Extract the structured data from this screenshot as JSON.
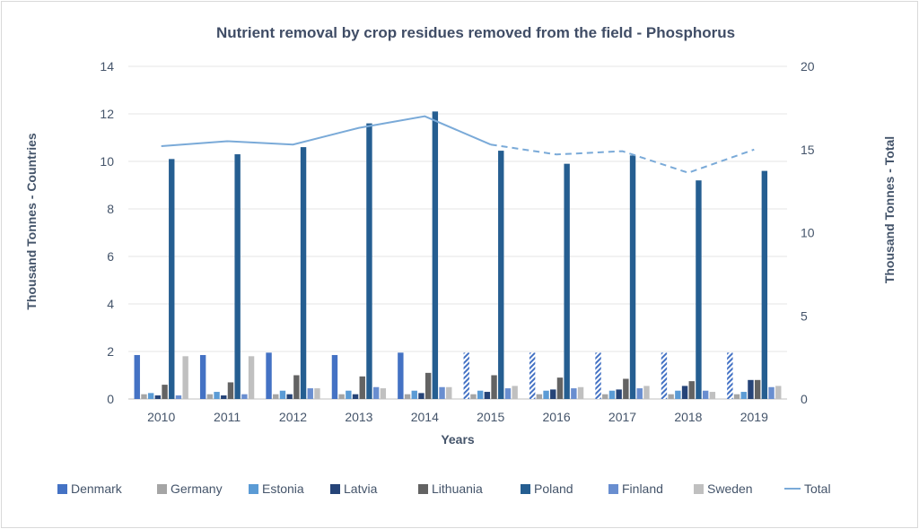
{
  "chart_data": {
    "type": "bar",
    "title": "Nutrient removal by crop residues removed from the field - Phosphorus",
    "xlabel": "Years",
    "ylabel": "Thousand Tonnes - Countries",
    "y2label": "Thousand Tonnes - Total",
    "categories": [
      "2010",
      "2011",
      "2012",
      "2013",
      "2014",
      "2015",
      "2016",
      "2017",
      "2018",
      "2019"
    ],
    "ylim": [
      0,
      14
    ],
    "yticks": [
      0,
      2,
      4,
      6,
      8,
      10,
      12,
      14
    ],
    "y2lim": [
      0,
      20
    ],
    "y2ticks": [
      0,
      5,
      10,
      15,
      20
    ],
    "grid": true,
    "legend_position": "bottom",
    "hatched_from_category": "2015",
    "series": [
      {
        "name": "Denmark",
        "color": "#4472c4",
        "values": [
          1.85,
          1.85,
          1.95,
          1.85,
          1.95,
          1.95,
          1.95,
          1.95,
          1.95,
          1.95
        ]
      },
      {
        "name": "Germany",
        "color": "#a5a5a5",
        "values": [
          0.2,
          0.2,
          0.2,
          0.2,
          0.2,
          0.2,
          0.2,
          0.2,
          0.2,
          0.2
        ]
      },
      {
        "name": "Estonia",
        "color": "#5b9bd5",
        "values": [
          0.25,
          0.3,
          0.35,
          0.35,
          0.35,
          0.35,
          0.35,
          0.35,
          0.35,
          0.3
        ]
      },
      {
        "name": "Latvia",
        "color": "#264478",
        "values": [
          0.15,
          0.15,
          0.2,
          0.2,
          0.25,
          0.3,
          0.4,
          0.4,
          0.55,
          0.8
        ]
      },
      {
        "name": "Lithuania",
        "color": "#636363",
        "values": [
          0.6,
          0.7,
          1.0,
          0.95,
          1.1,
          1.0,
          0.9,
          0.85,
          0.75,
          0.8
        ]
      },
      {
        "name": "Poland",
        "color": "#255e91",
        "values": [
          10.1,
          10.3,
          10.6,
          11.6,
          12.1,
          10.45,
          9.9,
          10.25,
          9.2,
          9.6
        ]
      },
      {
        "name": "Finland",
        "color": "#698ed0",
        "values": [
          0.15,
          0.2,
          0.45,
          0.5,
          0.5,
          0.45,
          0.45,
          0.45,
          0.35,
          0.5
        ]
      },
      {
        "name": "Sweden",
        "color": "#c0c0c0",
        "values": [
          1.8,
          1.8,
          0.45,
          0.45,
          0.5,
          0.55,
          0.5,
          0.55,
          0.3,
          0.55
        ]
      }
    ],
    "line": {
      "name": "Total",
      "color": "#7aaad8",
      "axis": "right",
      "dashed_from_category": "2015",
      "values": [
        15.2,
        15.5,
        15.3,
        16.3,
        17.0,
        15.3,
        14.7,
        14.9,
        13.6,
        15.0
      ]
    }
  }
}
